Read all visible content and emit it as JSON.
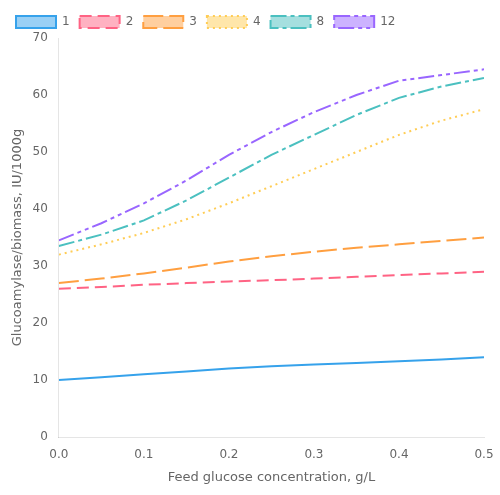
{
  "chart_data": {
    "type": "line",
    "xlabel": "Feed glucose concentration, g/L",
    "ylabel": "Glucoamylase/biomass, IU/1000g",
    "x": [
      0.0,
      0.05,
      0.1,
      0.15,
      0.2,
      0.25,
      0.3,
      0.35,
      0.4,
      0.45,
      0.5
    ],
    "series": [
      {
        "name": "1",
        "line_style": "solid",
        "values": [
          10.0,
          10.5,
          11.0,
          11.5,
          12.0,
          12.4,
          12.7,
          13.0,
          13.3,
          13.6,
          14.0
        ]
      },
      {
        "name": "2",
        "line_style": "dashes_medium",
        "values": [
          26.0,
          26.3,
          26.7,
          27.0,
          27.3,
          27.5,
          27.8,
          28.1,
          28.4,
          28.7,
          29.0
        ]
      },
      {
        "name": "3",
        "line_style": "dashes_long",
        "values": [
          27.0,
          27.8,
          28.7,
          29.7,
          30.8,
          31.7,
          32.5,
          33.2,
          33.8,
          34.4,
          35.0
        ]
      },
      {
        "name": "4",
        "line_style": "dotted",
        "values": [
          32.0,
          33.8,
          35.8,
          38.2,
          41.0,
          44.0,
          47.0,
          50.0,
          53.0,
          55.5,
          57.5
        ]
      },
      {
        "name": "8",
        "line_style": "dashdot",
        "values": [
          33.5,
          35.5,
          38.0,
          41.5,
          45.5,
          49.5,
          53.0,
          56.5,
          59.5,
          61.5,
          63.0
        ]
      },
      {
        "name": "12",
        "line_style": "dashdotdot",
        "values": [
          34.5,
          37.5,
          41.0,
          45.0,
          49.5,
          53.5,
          57.0,
          60.0,
          62.5,
          63.5,
          64.5
        ]
      }
    ],
    "xlim": [
      0.0,
      0.5
    ],
    "ylim": [
      0,
      70
    ],
    "xticks": [
      {
        "value": 0.0,
        "label": "0.0"
      },
      0.1,
      0.2,
      0.3,
      0.4,
      0.5
    ],
    "yticks": [
      0,
      10,
      20,
      30,
      40,
      50,
      60,
      70
    ],
    "grid": false,
    "legend": "upper left"
  }
}
